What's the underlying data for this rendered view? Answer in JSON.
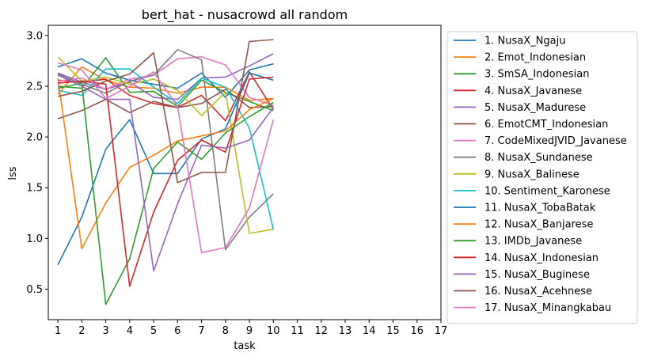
{
  "chart_data": {
    "type": "line",
    "title": "bert_hat - nusacrowd all random",
    "xlabel": "task",
    "ylabel": "lss",
    "xlim": [
      0.6,
      17.0
    ],
    "ylim": [
      0.2,
      3.1
    ],
    "x_ticks": [
      1,
      2,
      3,
      4,
      5,
      6,
      7,
      8,
      9,
      10,
      11,
      12,
      13,
      14,
      15,
      16,
      17
    ],
    "y_ticks": [
      0.5,
      1.0,
      1.5,
      2.0,
      2.5,
      3.0
    ],
    "y_tick_labels": [
      "0.5",
      "1.0",
      "1.5",
      "2.0",
      "2.5",
      "3.0"
    ],
    "grid": false,
    "legend_position": "outside-right",
    "x": [
      1,
      2,
      3,
      4,
      5,
      6,
      7,
      8,
      9,
      10
    ],
    "series": [
      {
        "name": "1. NusaX_Ngaju",
        "color": "#1f77b4",
        "values": [
          2.69,
          2.77,
          2.63,
          2.56,
          2.52,
          2.48,
          2.63,
          2.39,
          2.66,
          2.72
        ]
      },
      {
        "name": "2. Emot_Indonesian",
        "color": "#ff7f0e",
        "values": [
          2.42,
          2.69,
          2.56,
          2.49,
          2.48,
          2.43,
          2.49,
          2.49,
          2.36,
          2.38
        ]
      },
      {
        "name": "3. SmSA_Indonesian",
        "color": "#2ca02c",
        "values": [
          2.5,
          2.48,
          2.78,
          2.44,
          2.45,
          2.3,
          2.56,
          2.44,
          2.35,
          2.26
        ]
      },
      {
        "name": "4. NusaX_Javanese",
        "color": "#d62728",
        "values": [
          2.56,
          2.54,
          2.57,
          2.41,
          2.33,
          2.29,
          2.41,
          2.16,
          2.64,
          2.27
        ]
      },
      {
        "name": "5. NusaX_Madurese",
        "color": "#9467bd",
        "values": [
          2.63,
          2.54,
          2.47,
          2.54,
          2.39,
          2.37,
          2.58,
          2.59,
          2.7,
          2.82
        ]
      },
      {
        "name": "6. EmotCMT_Indonesian",
        "color": "#8c564b",
        "values": [
          2.18,
          2.26,
          2.37,
          2.24,
          2.35,
          2.29,
          2.33,
          2.47,
          2.29,
          2.3
        ]
      },
      {
        "name": "7. CodeMixedJVID_Javanese",
        "color": "#e377c2",
        "values": [
          2.55,
          2.58,
          2.47,
          2.57,
          2.61,
          2.77,
          2.79,
          2.71,
          2.39,
          2.31
        ]
      },
      {
        "name": "8. NusaX_Sundanese",
        "color": "#7f7f7f",
        "values": [
          2.62,
          2.52,
          2.43,
          2.55,
          2.61,
          2.86,
          2.76,
          0.89,
          1.21,
          1.44
        ]
      },
      {
        "name": "9. NusaX_Balinese",
        "color": "#bcbd22",
        "values": [
          2.79,
          2.55,
          2.59,
          2.52,
          2.57,
          2.46,
          2.21,
          2.44,
          1.05,
          1.09
        ]
      },
      {
        "name": "10. Sentiment_Karonese",
        "color": "#17becf",
        "values": [
          2.46,
          2.41,
          2.67,
          2.67,
          2.49,
          2.33,
          2.58,
          2.49,
          2.09,
          1.09
        ]
      },
      {
        "name": "11. NusaX_TobaBatak",
        "color": "#1f77b4",
        "values": [
          0.74,
          1.21,
          1.88,
          2.17,
          1.64,
          1.64,
          1.98,
          2.08,
          2.63,
          2.56
        ]
      },
      {
        "name": "12. NusaX_Banjarese",
        "color": "#ff7f0e",
        "values": [
          2.58,
          0.9,
          1.35,
          1.7,
          1.82,
          1.96,
          2.01,
          2.06,
          2.27,
          2.38
        ]
      },
      {
        "name": "13. IMDb_Javanese",
        "color": "#2ca02c",
        "values": [
          2.48,
          2.53,
          0.35,
          0.8,
          1.69,
          1.95,
          1.78,
          2.04,
          2.2,
          2.34
        ]
      },
      {
        "name": "14. NusaX_Indonesian",
        "color": "#d62728",
        "values": [
          2.53,
          2.55,
          2.52,
          0.53,
          1.26,
          1.77,
          1.97,
          1.85,
          2.57,
          2.59
        ]
      },
      {
        "name": "15. NusaX_Buginese",
        "color": "#9467bd",
        "values": [
          2.61,
          2.5,
          2.37,
          2.37,
          0.68,
          1.34,
          1.92,
          1.89,
          1.97,
          2.29
        ]
      },
      {
        "name": "16. NusaX_Acehnese",
        "color": "#8c564b",
        "values": [
          2.4,
          2.45,
          2.55,
          2.62,
          2.83,
          1.55,
          1.65,
          1.65,
          2.94,
          2.96
        ]
      },
      {
        "name": "17. NusaX_Minangkabau",
        "color": "#e377c2",
        "values": [
          2.73,
          2.66,
          2.38,
          2.5,
          2.64,
          2.3,
          0.86,
          0.91,
          1.3,
          2.17
        ]
      }
    ]
  }
}
